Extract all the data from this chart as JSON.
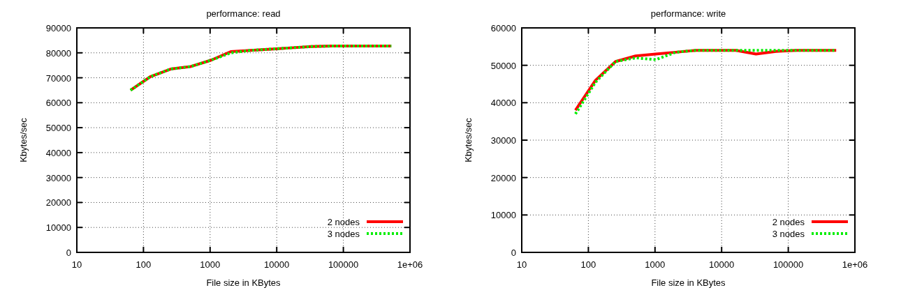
{
  "chart_data": [
    {
      "type": "line",
      "title": "performance: read",
      "xlabel": "File size in KBytes",
      "ylabel": "Kbytes/sec",
      "log": "x",
      "grid": true,
      "legend": "bottom right",
      "xlim": [
        10,
        1000000
      ],
      "xticks": [
        10,
        100,
        1000,
        10000,
        100000,
        {
          "value": 1000000,
          "label": "1e+06"
        }
      ],
      "ylim": [
        0,
        90000
      ],
      "yticks": [
        0,
        10000,
        20000,
        30000,
        40000,
        50000,
        60000,
        70000,
        80000,
        90000
      ],
      "x": [
        64,
        128,
        256,
        512,
        1024,
        2048,
        4096,
        8192,
        16384,
        32768,
        65536,
        131072,
        262144,
        524288
      ],
      "series": [
        {
          "name": "2 nodes",
          "color": "#ff0000",
          "line_style": "solid",
          "values": [
            65000,
            70500,
            73500,
            74500,
            77000,
            80500,
            81000,
            81500,
            82000,
            82500,
            82700,
            82700,
            82700,
            82700
          ]
        },
        {
          "name": "3 nodes",
          "color": "#00ee00",
          "line_style": "dotted",
          "values": [
            65000,
            70500,
            73500,
            74500,
            77000,
            80000,
            81000,
            81500,
            82000,
            82500,
            82700,
            82700,
            82700,
            82700
          ]
        }
      ]
    },
    {
      "type": "line",
      "title": "performance: write",
      "xlabel": "File size in KBytes",
      "ylabel": "Kbytes/sec",
      "log": "x",
      "grid": true,
      "legend": "bottom right",
      "xlim": [
        10,
        1000000
      ],
      "xticks": [
        10,
        100,
        1000,
        10000,
        100000,
        {
          "value": 1000000,
          "label": "1e+06"
        }
      ],
      "ylim": [
        0,
        60000
      ],
      "yticks": [
        0,
        10000,
        20000,
        30000,
        40000,
        50000,
        60000
      ],
      "x": [
        64,
        128,
        256,
        512,
        1024,
        2048,
        4096,
        8192,
        16384,
        32768,
        65536,
        131072,
        262144,
        524288
      ],
      "series": [
        {
          "name": "2 nodes",
          "color": "#ff0000",
          "line_style": "solid",
          "values": [
            38000,
            46000,
            51000,
            52500,
            53000,
            53500,
            54000,
            54000,
            54000,
            53000,
            53700,
            54000,
            54000,
            54000
          ]
        },
        {
          "name": "3 nodes",
          "color": "#00ee00",
          "line_style": "dotted",
          "values": [
            37000,
            45500,
            51000,
            52000,
            51500,
            53500,
            54000,
            54000,
            54000,
            54000,
            54000,
            54000,
            54000,
            54000
          ]
        }
      ]
    }
  ]
}
